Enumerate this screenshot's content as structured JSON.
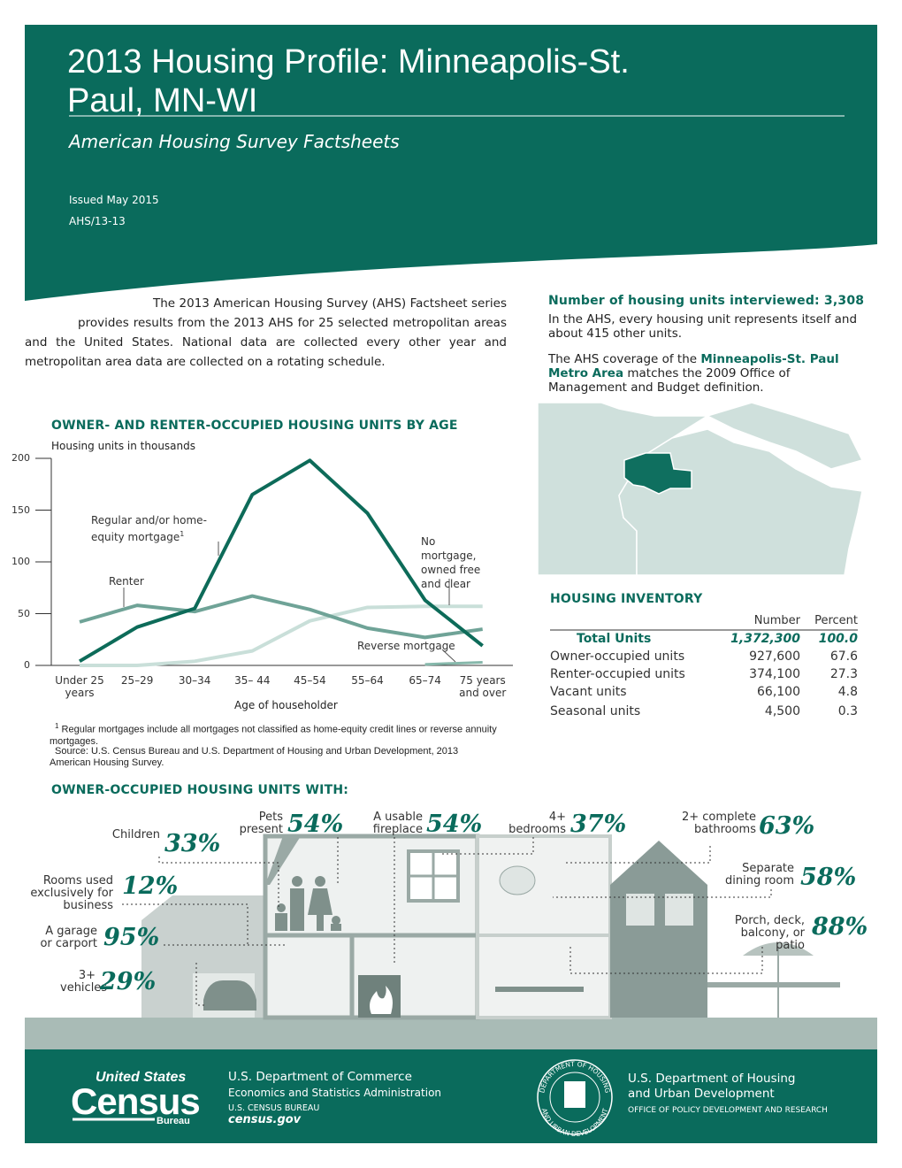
{
  "header": {
    "title": "2013 Housing Profile: Minneapolis-St. Paul, MN-WI",
    "subtitle": "American Housing Survey Factsheets",
    "issued": "Issued May 2015",
    "report_id": "AHS/13-13"
  },
  "intro": "The 2013 American Housing Survey (AHS) Factsheet series provides results from the 2013 AHS for 25 selected metropolitan areas and the United States. National data are collected every other year and metropolitan area data are collected on a rotating schedule.",
  "sample": {
    "heading": "Number of housing units interviewed: 3,308",
    "text": "In the AHS, every housing unit represents itself and about 415 other units.",
    "coverage": [
      "The AHS coverage of the ",
      "Minneapolis-St. Paul Metro Area",
      " matches the 2009 Office of Management and Budget definition."
    ]
  },
  "chart_data": {
    "type": "line",
    "title": "OWNER- AND RENTER-OCCUPIED HOUSING UNITS BY AGE",
    "y_label": "Housing units in thousands",
    "x_label": "Age of householder",
    "categories": [
      "Under 25 years",
      "25–29",
      "30–34",
      "35– 44",
      "45–54",
      "55–64",
      "65–74",
      "75 years and over"
    ],
    "series": [
      {
        "name": "Regular and/or home-equity mortgage",
        "color": "#0d6b59",
        "values": [
          4,
          37,
          55,
          165,
          198,
          147,
          63,
          19
        ]
      },
      {
        "name": "Renter",
        "color": "#6fa397",
        "values": [
          42,
          58,
          52,
          67,
          54,
          36,
          27,
          35
        ]
      },
      {
        "name": "No mortgage, owned free and clear",
        "color": "#c9dfd9",
        "values": [
          0,
          0,
          4,
          14,
          43,
          56,
          57,
          57
        ]
      },
      {
        "name": "Reverse mortgage",
        "color": "#86b8ab",
        "values": [
          null,
          null,
          null,
          null,
          null,
          null,
          1,
          3
        ]
      }
    ],
    "annotation_marker": "1",
    "ylim": [
      0,
      200
    ],
    "yticks": [
      0,
      50,
      100,
      150,
      200
    ],
    "footnote": {
      "marker": "1",
      "text": "Regular mortgages include all mortgages not classified as home-equity credit lines or reverse annuity mortgages."
    },
    "source": "Source: U.S. Census Bureau and U.S. Department of Housing and Urban Development, 2013 American Housing Survey."
  },
  "inventory": {
    "title": "HOUSING INVENTORY",
    "columns": [
      "Number",
      "Percent"
    ],
    "rows": [
      [
        "Total Units",
        "1,372,300",
        "100.0"
      ],
      [
        "Owner-occupied units",
        "927,600",
        "67.6"
      ],
      [
        "Renter-occupied units",
        "374,100",
        "27.3"
      ],
      [
        "Vacant units",
        "66,100",
        "4.8"
      ],
      [
        "Seasonal units",
        "4,500",
        "0.3"
      ]
    ]
  },
  "owner_features": {
    "title": "OWNER-OCCUPIED HOUSING UNITS WITH:",
    "items": [
      {
        "label": "Children",
        "value": "33%"
      },
      {
        "label": "Pets present",
        "value": "54%"
      },
      {
        "label": "A usable fireplace",
        "value": "54%"
      },
      {
        "label": "4+ bedrooms",
        "value": "37%"
      },
      {
        "label": "2+ complete bathrooms",
        "value": "63%"
      },
      {
        "label": "Rooms used exclusively for business",
        "value": "12%"
      },
      {
        "label": "Separate dining room",
        "value": "58%"
      },
      {
        "label": "A garage or carport",
        "value": "95%"
      },
      {
        "label": "Porch, deck, balcony, or patio",
        "value": "88%"
      },
      {
        "label": "3+ vehicles",
        "value": "29%"
      }
    ]
  },
  "footer": {
    "logo": {
      "top": "United States",
      "main": "Census",
      "bottom": "Bureau"
    },
    "commerce": [
      "U.S. Department of Commerce",
      "Economics and Statistics Administration",
      "U.S. CENSUS BUREAU",
      "census.gov"
    ],
    "seal": {
      "top": "DEPARTMENT OF HOUSING",
      "bottom": "AND URBAN DEVELOPMENT"
    },
    "hud": [
      "U.S. Department of Housing and Urban Development",
      "OFFICE OF POLICY DEVELOPMENT AND RESEARCH"
    ]
  }
}
